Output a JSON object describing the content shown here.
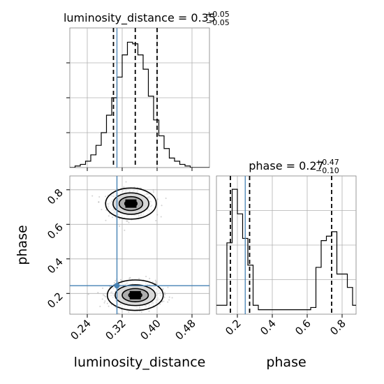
{
  "chart_data": {
    "type": "corner",
    "params": [
      "luminosity_distance",
      "phase"
    ],
    "axis_labels": {
      "x1": "luminosity_distance",
      "x2": "phase",
      "y2": "phase"
    },
    "truth": {
      "luminosity_distance": 0.308,
      "phase": 0.245
    },
    "truth_color": "#4682b4",
    "x1_ticks": [
      "0.24",
      "0.32",
      "0.40",
      "0.48"
    ],
    "x1_tick_values": [
      0.24,
      0.32,
      0.4,
      0.48
    ],
    "x1_range": [
      0.2,
      0.52
    ],
    "x2_ticks": [
      "0.2",
      "0.4",
      "0.6",
      "0.8"
    ],
    "x2_tick_values": [
      0.2,
      0.4,
      0.6,
      0.8
    ],
    "x2_range": [
      0.08,
      0.88
    ],
    "y2_ticks": [
      "0.2",
      "0.4",
      "0.6",
      "0.8"
    ],
    "y2_tick_values": [
      0.2,
      0.4,
      0.6,
      0.8
    ],
    "y2_range": [
      0.08,
      0.88
    ],
    "marginal_1": {
      "title_main": "luminosity_distance = 0.35",
      "title_sup": "+0.05",
      "title_sub": "−0.05",
      "quantiles": [
        0.3,
        0.35,
        0.4
      ],
      "bin_edges": [
        0.2,
        0.212,
        0.224,
        0.236,
        0.248,
        0.26,
        0.272,
        0.284,
        0.296,
        0.308,
        0.32,
        0.332,
        0.344,
        0.356,
        0.368,
        0.38,
        0.392,
        0.404,
        0.416,
        0.428,
        0.44,
        0.452,
        0.464,
        0.476,
        0.488,
        0.5,
        0.512,
        0.52
      ],
      "counts": [
        0,
        1,
        2,
        4,
        8,
        14,
        22,
        33,
        44,
        57,
        71,
        79,
        78,
        71,
        62,
        45,
        30,
        20,
        12,
        6,
        4,
        2,
        1,
        0,
        0,
        0,
        0
      ],
      "ymax": 88
    },
    "marginal_2": {
      "title_main": "phase = 0.27",
      "title_sup": "+0.47",
      "title_sub": "−0.10",
      "quantiles": [
        0.16,
        0.27,
        0.74
      ],
      "bin_edges": [
        0.08,
        0.11,
        0.14,
        0.17,
        0.2,
        0.23,
        0.26,
        0.29,
        0.32,
        0.35,
        0.38,
        0.41,
        0.44,
        0.47,
        0.5,
        0.53,
        0.56,
        0.59,
        0.62,
        0.65,
        0.68,
        0.71,
        0.74,
        0.77,
        0.8,
        0.83,
        0.86,
        0.88
      ],
      "counts": [
        4,
        4,
        32,
        56,
        45,
        34,
        22,
        4,
        2,
        2,
        2,
        2,
        2,
        2,
        2,
        2,
        2,
        2,
        3,
        21,
        33,
        35,
        37,
        18,
        18,
        12,
        4
      ],
      "ymax": 62
    },
    "contours": [
      {
        "cx": 0.34,
        "cy": 0.72,
        "rx": [
          0.058,
          0.041,
          0.027,
          0.014
        ],
        "ry": [
          0.09,
          0.062,
          0.04,
          0.02
        ]
      },
      {
        "cx": 0.35,
        "cy": 0.19,
        "rx": [
          0.064,
          0.046,
          0.03,
          0.015
        ],
        "ry": [
          0.088,
          0.06,
          0.038,
          0.018
        ]
      }
    ]
  }
}
